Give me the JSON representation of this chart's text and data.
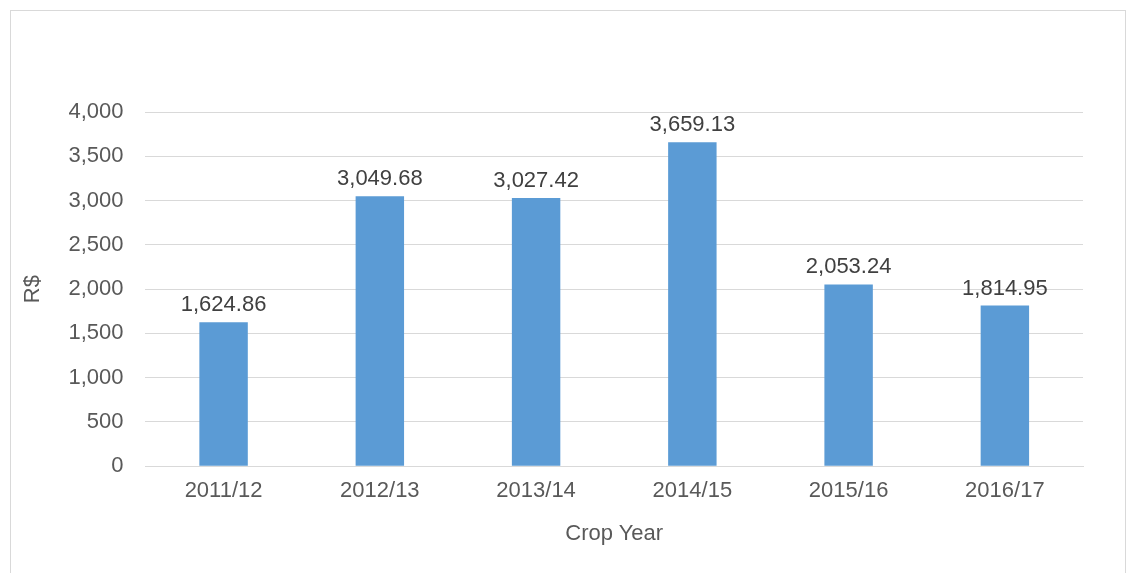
{
  "chart_data": {
    "type": "bar",
    "xlabel": "Crop Year",
    "ylabel": "R$",
    "categories": [
      "2011/12",
      "2012/13",
      "2013/14",
      "2014/15",
      "2015/16",
      "2016/17"
    ],
    "values": [
      1624.86,
      3049.68,
      3027.42,
      3659.13,
      2053.24,
      1814.95
    ],
    "value_labels": [
      "1,624.86",
      "3,049.68",
      "3,027.42",
      "3,659.13",
      "2,053.24",
      "1,814.95"
    ],
    "color": "#5b9bd5",
    "ylim": [
      0,
      4000
    ],
    "yticks": [
      0,
      500,
      {
        "value": 1000,
        "label": "1,000"
      },
      {
        "value": 1500,
        "label": "1,500"
      },
      {
        "value": 2000,
        "label": "2,000"
      },
      {
        "value": 2500,
        "label": "2,500"
      },
      {
        "value": 3000,
        "label": "3,000"
      },
      {
        "value": 3500,
        "label": "3,500"
      },
      {
        "value": 4000,
        "label": "4,000"
      }
    ],
    "grid": "y",
    "legend": false
  }
}
